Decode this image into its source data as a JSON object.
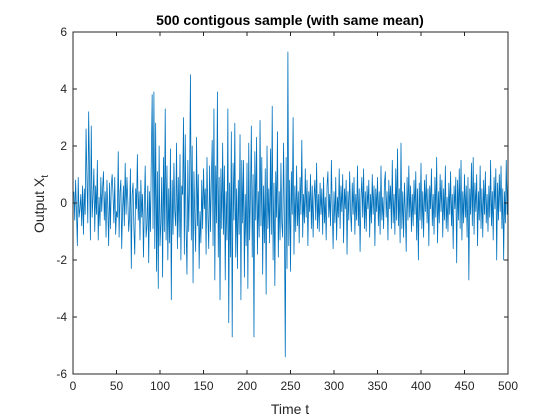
{
  "chart_data": {
    "type": "line",
    "title": "500 contigous sample (with same mean)",
    "xlabel": "Time t",
    "ylabel_main": "Output X",
    "ylabel_sub": "t",
    "xlim": [
      0,
      500
    ],
    "ylim": [
      -6,
      6
    ],
    "xticks": [
      0,
      50,
      100,
      150,
      200,
      250,
      300,
      350,
      400,
      450,
      500
    ],
    "yticks": [
      -6,
      -4,
      -2,
      0,
      2,
      4,
      6
    ],
    "grid": false,
    "line_color": "#0072BD",
    "series": [
      {
        "x_start": 1,
        "x_step": 1,
        "values": [
          0.4,
          -0.6,
          0.8,
          -0.3,
          -1.5,
          0.9,
          -0.5,
          -0.2,
          0.3,
          -0.8,
          0.6,
          -1.1,
          0.5,
          -0.4,
          2.6,
          0.9,
          -0.7,
          3.2,
          1.0,
          -1.3,
          2.7,
          -0.5,
          0.2,
          1.2,
          -1.0,
          0.6,
          -0.4,
          1.5,
          -1.3,
          0.2,
          -0.8,
          0.9,
          -0.3,
          0.5,
          1.1,
          -0.6,
          0.4,
          -1.2,
          0.8,
          -0.2,
          -1.5,
          0.7,
          -0.9,
          0.6,
          1.0,
          0.3,
          -0.7,
          0.9,
          -1.1,
          -0.3,
          -0.5,
          1.8,
          -1.2,
          0.4,
          0.8,
          -1.6,
          -0.2,
          0.6,
          -0.8,
          1.4,
          -0.4,
          0.9,
          0.1,
          -1.0,
          -0.5,
          1.2,
          -2.3,
          0.3,
          0.7,
          -0.9,
          -1.8,
          0.5,
          -0.2,
          1.7,
          -0.6,
          0.4,
          -1.3,
          0.8,
          -0.5,
          0.3,
          -1.9,
          -0.1,
          1.3,
          -1.2,
          -0.8,
          0.6,
          -2.1,
          0.4,
          -1.0,
          1.5,
          3.8,
          -0.9,
          3.9,
          -1.6,
          2.8,
          -2.4,
          1.1,
          -3.0,
          2.0,
          -1.5,
          -0.7,
          0.9,
          -2.6,
          1.6,
          -1.0,
          3.3,
          -1.3,
          1.3,
          -2.0,
          0.5,
          -1.4,
          1.9,
          -3.4,
          0.8,
          -1.1,
          1.4,
          -0.3,
          -0.8,
          2.1,
          -1.6,
          0.9,
          -1.2,
          1.7,
          -2.0,
          0.6,
          0.3,
          3.0,
          -1.8,
          2.4,
          -0.9,
          -2.5,
          1.5,
          -1.0,
          0.7,
          4.5,
          -1.3,
          2.0,
          -2.8,
          1.1,
          -0.5,
          -1.7,
          2.3,
          -0.8,
          1.0,
          -2.3,
          -0.3,
          -1.4,
          0.8,
          -0.9,
          1.2,
          -0.2,
          0.5,
          -1.8,
          1.6,
          -0.4,
          -1.6,
          1.3,
          -1.0,
          0.8,
          2.2,
          -1.5,
          3.3,
          -2.7,
          1.3,
          -0.7,
          3.9,
          -1.9,
          0.9,
          -3.4,
          1.2,
          -0.9,
          2.1,
          -1.1,
          1.3,
          -2.7,
          0.4,
          -1.3,
          3.3,
          -4.2,
          0.7,
          -1.9,
          2.5,
          -4.7,
          1.4,
          -0.6,
          2.8,
          -1.9,
          0.5,
          -2.3,
          0.8,
          -1.1,
          2.4,
          -3.4,
          1.5,
          -0.7,
          1.5,
          -2.6,
          0.3,
          -1.5,
          1.4,
          -3.0,
          2.1,
          -1.3,
          0.3,
          2.7,
          -1.9,
          1.0,
          -4.7,
          1.8,
          -0.6,
          2.3,
          -1.8,
          0.4,
          -1.2,
          2.9,
          -0.8,
          1.6,
          -2.5,
          0.6,
          -1.4,
          1.2,
          -3.2,
          2.0,
          -0.9,
          0.5,
          -1.4,
          1.9,
          -1.1,
          3.4,
          -2.0,
          0.7,
          -2.9,
          1.1,
          -0.5,
          2.5,
          -1.9,
          0.4,
          -1.3,
          1.4,
          -0.7,
          -1.2,
          2.1,
          -0.6,
          -5.4,
          1.6,
          -2.3,
          5.3,
          -1.5,
          0.8,
          -2.4,
          1.1,
          -0.4,
          3.0,
          -1.8,
          0.6,
          -1.0,
          1.3,
          -0.8,
          0.4,
          -1.4,
          0.9,
          -0.4,
          2.2,
          -1.2,
          0.3,
          -0.7,
          1.2,
          -0.5,
          0.8,
          -1.5,
          0.4,
          -0.3,
          1.0,
          -0.9,
          0.6,
          -1.2,
          0.2,
          0.8,
          -0.6,
          1.4,
          -0.9,
          0.3,
          -1.0,
          0.7,
          -0.4,
          0.5,
          -1.1,
          0.9,
          -0.7,
          0.2,
          -1.3,
          0.6,
          1.1,
          -0.5,
          0.3,
          -0.8,
          1.5,
          -0.2,
          -1.6,
          0.4,
          -0.7,
          0.9,
          -1.3,
          0.2,
          -0.5,
          1.2,
          -0.9,
          0.6,
          -0.3,
          1.0,
          -1.4,
          0.5,
          -0.2,
          0.8,
          -1.8,
          0.4,
          -0.6,
          1.1,
          -0.3,
          -1.0,
          0.7,
          -0.4,
          0.9,
          -1.1,
          0.3,
          -0.6,
          1.3,
          -0.8,
          0.5,
          -1.7,
          0.2,
          0.9,
          -0.5,
          1.2,
          -0.9,
          0.4,
          -1.0,
          0.6,
          -0.2,
          0.8,
          -1.2,
          0.3,
          -0.7,
          1.0,
          -0.4,
          0.6,
          -1.5,
          0.5,
          -0.3,
          0.9,
          -0.8,
          0.4,
          -1.1,
          1.3,
          -0.6,
          0.2,
          -0.9,
          0.7,
          1.1,
          -0.5,
          0.4,
          -1.3,
          0.8,
          -0.2,
          0.6,
          -0.9,
          1.5,
          -0.7,
          0.3,
          -1.1,
          1.2,
          -0.6,
          1.9,
          -0.8,
          0.5,
          -1.4,
          2.1,
          -0.9,
          0.4,
          -1.2,
          0.7,
          -0.3,
          -1.7,
          0.9,
          -0.6,
          1.3,
          -0.5,
          0.6,
          -1.0,
          0.3,
          -0.8,
          0.8,
          -0.4,
          1.1,
          -1.3,
          0.5,
          -2.0,
          0.7,
          -0.6,
          1.4,
          -0.9,
          0.4,
          -1.2,
          0.8,
          -0.3,
          1.0,
          -0.7,
          0.5,
          -1.5,
          0.6,
          -0.2,
          1.2,
          -0.8,
          0.3,
          -1.1,
          0.9,
          -0.5,
          1.6,
          -1.4,
          0.4,
          -0.7,
          1.0,
          -0.3,
          0.8,
          -1.2,
          0.5,
          -0.6,
          1.3,
          -0.9,
          0.2,
          -1.0,
          0.7,
          -0.4,
          1.1,
          -0.8,
          0.3,
          -1.6,
          0.6,
          -0.2,
          0.9,
          -2.1,
          0.8,
          -0.6,
          1.2,
          -0.9,
          1.5,
          -1.3,
          0.4,
          -0.7,
          1.0,
          -0.5,
          0.6,
          -1.2,
          0.9,
          -2.7,
          0.5,
          -0.4,
          1.4,
          -0.8,
          1.6,
          -1.1,
          0.7,
          -0.3,
          1.0,
          -1.5,
          0.4,
          -0.6,
          1.3,
          -0.9,
          0.5,
          -1.2,
          0.8,
          -0.4,
          1.1,
          -0.7,
          0.3,
          -1.0,
          0.6,
          -0.5,
          1.5,
          -0.8,
          0.4,
          -1.3,
          0.9,
          -0.2,
          1.2,
          -2.0,
          0.7,
          -0.6,
          1.0,
          -0.3,
          1.3,
          -0.9,
          0.5,
          -2.0,
          0.4,
          -0.7,
          1.5,
          -0.4,
          1.0
        ]
      }
    ]
  }
}
